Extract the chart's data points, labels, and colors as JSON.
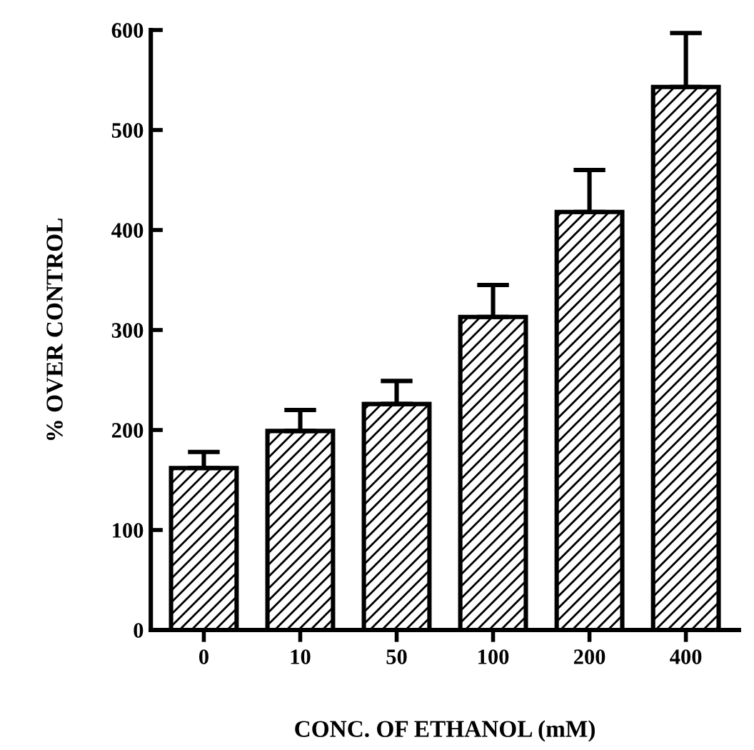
{
  "chart_data": {
    "type": "bar",
    "xlabel": "CONC. OF ETHANOL (mM)",
    "ylabel": "% OVER CONTROL",
    "categories": [
      "0",
      "10",
      "50",
      "100",
      "200",
      "400"
    ],
    "values": [
      162,
      199,
      226,
      313,
      418,
      543
    ],
    "errors": [
      [
        162,
        178
      ],
      [
        199,
        220
      ],
      [
        226,
        249
      ],
      [
        313,
        345
      ],
      [
        418,
        460
      ],
      [
        543,
        597
      ]
    ],
    "color": "#000000",
    "ylim": [
      0,
      600
    ],
    "yticks": [
      0,
      100,
      200,
      300,
      400,
      500,
      600
    ],
    "grid": false
  }
}
